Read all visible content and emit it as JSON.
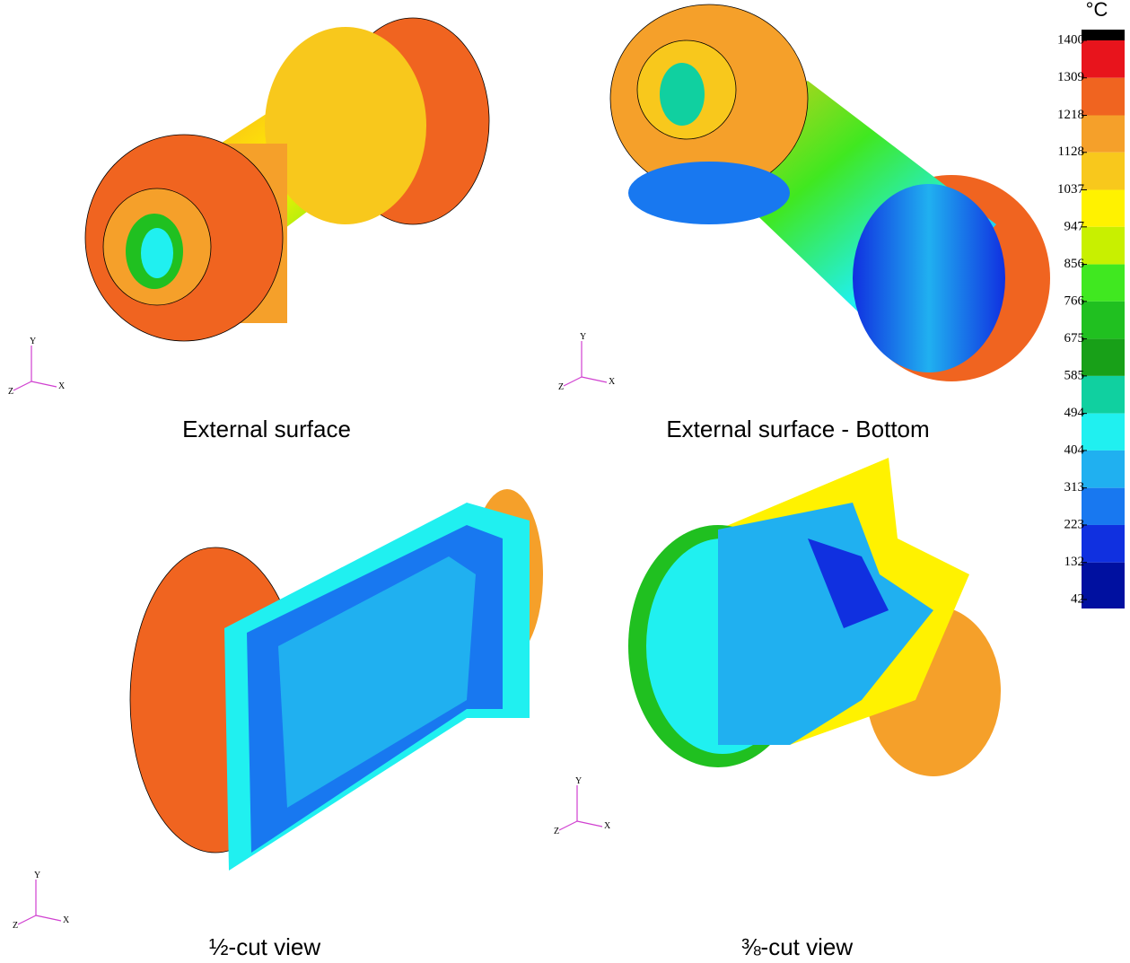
{
  "colorbar": {
    "unit": "°C",
    "ticks": [
      1400,
      1309,
      1218,
      1128,
      1037,
      947,
      856,
      766,
      675,
      585,
      494,
      404,
      313,
      223,
      132,
      42
    ],
    "colors": [
      "#e8141c",
      "#f06420",
      "#f5a02a",
      "#f8c81c",
      "#fff200",
      "#c8f000",
      "#40e820",
      "#20c020",
      "#18a018",
      "#10d0a0",
      "#20f0f0",
      "#20b0f0",
      "#1878f0",
      "#1030e0",
      "#0010a0"
    ]
  },
  "panels": [
    {
      "caption": "External surface",
      "triad": {
        "y": "Y",
        "z": "Z",
        "x": "X"
      }
    },
    {
      "caption": "External surface - Bottom",
      "triad": {
        "y": "Y",
        "z": "Z",
        "x": "X"
      }
    },
    {
      "caption": "½-cut view",
      "triad": {
        "y": "Y",
        "z": "Z",
        "x": "X"
      }
    },
    {
      "caption": "⅜-cut view",
      "triad": {
        "y": "Y",
        "z": "Z",
        "x": "X"
      }
    }
  ]
}
